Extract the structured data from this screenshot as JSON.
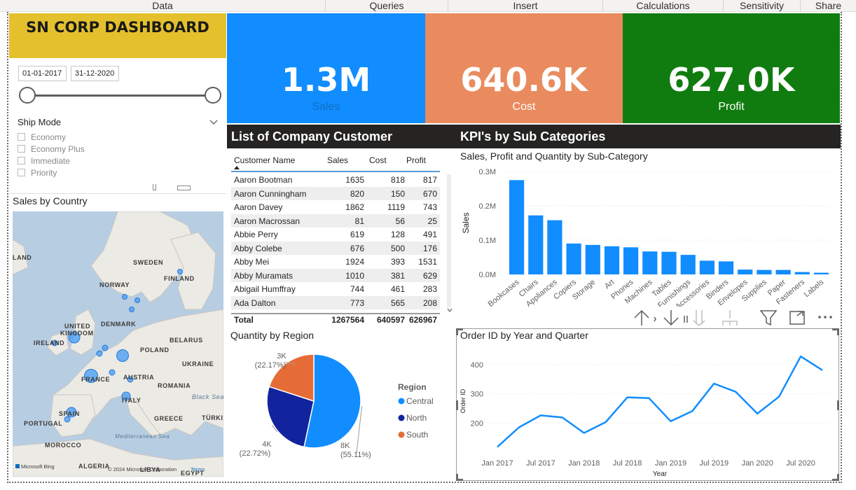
{
  "ribbon": {
    "tabs": [
      "Data",
      "Queries",
      "Insert",
      "Calculations",
      "Sensitivity",
      "Share"
    ]
  },
  "dashboard": {
    "title": "SN CORP DASHBOARD"
  },
  "date_slicer": {
    "start": "01-01-2017",
    "end": "31-12-2020"
  },
  "ship_mode": {
    "title": "Ship Mode",
    "options": [
      "Economy",
      "Economy Plus",
      "Immediate",
      "Priority"
    ]
  },
  "map": {
    "title": "Sales by Country",
    "labels": [
      "LAND",
      "SWEDEN",
      "NORWAY",
      "FINLAND",
      "UNITED",
      "KINGDOM",
      "IRELAND",
      "DENMARK",
      "BELARUS",
      "POLAND",
      "UKRAINE",
      "FRANCE",
      "AUSTRIA",
      "ROMANIA",
      "ITALY",
      "Black Sea",
      "SPAIN",
      "PORTUGAL",
      "GREECE",
      "TÜRKI",
      "Mediterranean Sea",
      "MOROCCO",
      "ALGERIA",
      "LIBYA",
      "EGYPT"
    ],
    "attribution": "© 2024 Microsoft Corporation",
    "terms": "Terms",
    "brand": "Microsoft Bing"
  },
  "kpis": [
    {
      "value": "1.3M",
      "label": "Sales",
      "bg": "#118dff",
      "label_color": "#0f6fc6"
    },
    {
      "value": "640.6K",
      "label": "Cost",
      "bg": "#e98b5f",
      "label_color": "#ffffff"
    },
    {
      "value": "627.0K",
      "label": "Profit",
      "bg": "#107c10",
      "label_color": "#ffffff"
    }
  ],
  "sections": {
    "customers": "List of Company Customer",
    "kpi_subcat": "KPI's by Sub Categories"
  },
  "customer_table": {
    "headers": [
      "Customer Name",
      "Sales",
      "Cost",
      "Profit"
    ],
    "rows": [
      [
        "Aaron Bootman",
        "1635",
        "818",
        "817"
      ],
      [
        "Aaron Cunningham",
        "820",
        "150",
        "670"
      ],
      [
        "Aaron Davey",
        "1862",
        "1119",
        "743"
      ],
      [
        "Aaron Macrossan",
        "81",
        "56",
        "25"
      ],
      [
        "Abbie Perry",
        "619",
        "128",
        "491"
      ],
      [
        "Abby Colebe",
        "676",
        "500",
        "176"
      ],
      [
        "Abby Mei",
        "1924",
        "393",
        "1531"
      ],
      [
        "Abby Muramats",
        "1010",
        "381",
        "629"
      ],
      [
        "Abigail Humffray",
        "744",
        "461",
        "283"
      ],
      [
        "Ada Dalton",
        "773",
        "565",
        "208"
      ]
    ],
    "total": [
      "Total",
      "1267564",
      "640597",
      "626967"
    ]
  },
  "pie_title": "Quantity by Region",
  "bar_title": "Sales, Profit and Quantity by Sub-Category",
  "line_title": "Order ID by Year and Quarter",
  "chart_data": [
    {
      "type": "pie",
      "title": "Quantity by Region",
      "legend_title": "Region",
      "legend_placement": "right",
      "categories": [
        "Central",
        "North",
        "South"
      ],
      "values": [
        8000,
        4000,
        3000
      ],
      "data_labels": [
        "8K",
        "4K",
        "3K"
      ],
      "percent_labels": [
        "(55.11%)",
        "(22.72%)",
        "(22.17%)"
      ],
      "percents": [
        55.11,
        22.72,
        22.17
      ],
      "colors": [
        "#118dff",
        "#12239e",
        "#e66c37"
      ]
    },
    {
      "type": "bar",
      "title": "Sales, Profit and Quantity by Sub-Category",
      "ylabel": "Sales",
      "ylim": [
        0,
        300000
      ],
      "yticks": [
        0,
        100000,
        200000,
        300000
      ],
      "ytick_labels": [
        "0.0M",
        "0.1M",
        "0.2M",
        "0.3M"
      ],
      "categories": [
        "Bookcases",
        "Chairs",
        "Appliances",
        "Copiers",
        "Storage",
        "Art",
        "Phones",
        "Machines",
        "Tables",
        "Furnishings",
        "Accessories",
        "Binders",
        "Envelopes",
        "Supplies",
        "Paper",
        "Fasteners",
        "Labels"
      ],
      "values": [
        275000,
        172000,
        158000,
        90000,
        86000,
        82000,
        79000,
        67000,
        66000,
        57000,
        40000,
        38000,
        14000,
        13000,
        13000,
        7000,
        5000
      ],
      "color": "#118dff"
    },
    {
      "type": "line",
      "title": "Order ID by Year and Quarter",
      "xlabel": "Year",
      "ylabel": "Order ID",
      "ylim": [
        100,
        450
      ],
      "yticks": [
        200,
        300,
        400
      ],
      "x": [
        "2017-Q1",
        "2017-Q2",
        "2017-Q3",
        "2017-Q4",
        "2018-Q1",
        "2018-Q2",
        "2018-Q3",
        "2018-Q4",
        "2019-Q1",
        "2019-Q2",
        "2019-Q3",
        "2019-Q4",
        "2020-Q1",
        "2020-Q2",
        "2020-Q3",
        "2020-Q4"
      ],
      "x_tick_labels": [
        "Jan 2017",
        "Jul 2017",
        "Jan 2018",
        "Jul 2018",
        "Jan 2019",
        "Jul 2019",
        "Jan 2020",
        "Jul 2020"
      ],
      "values": [
        118,
        185,
        226,
        219,
        166,
        203,
        288,
        285,
        206,
        241,
        335,
        307,
        232,
        290,
        428,
        381
      ],
      "color": "#118dff"
    }
  ]
}
